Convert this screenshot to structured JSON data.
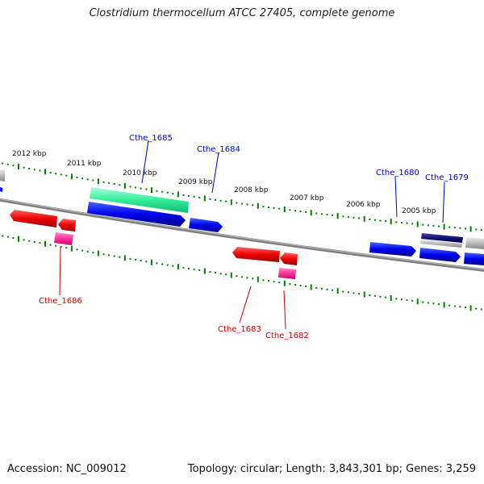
{
  "title": "Clostridium thermocellum ATCC 27405, complete genome",
  "footer": {
    "accession": "Accession: NC_009012",
    "summary": "Topology: circular; Length: 3,843,301 bp; Genes: 3,259"
  },
  "ruler_labels": [
    "2012 kbp",
    "2011 kbp",
    "2010 kbp",
    "2009 kbp",
    "2008 kbp",
    "2007 kbp",
    "2006 kbp",
    "2005 kbp"
  ],
  "gene_labels": {
    "forward": [
      "Cthe_1685",
      "Cthe_1684",
      "Cthe_1680",
      "Cthe_1679"
    ],
    "reverse": [
      "Cthe_1686",
      "Cthe_1683",
      "Cthe_1682"
    ]
  },
  "colors": {
    "forward_gene": "#0000ee",
    "reverse_gene": "#ee0000",
    "rrna": "#ff3399",
    "trna": "#33ee99",
    "other": "#111177",
    "backbone": "#808080",
    "ticks": "#008000"
  }
}
